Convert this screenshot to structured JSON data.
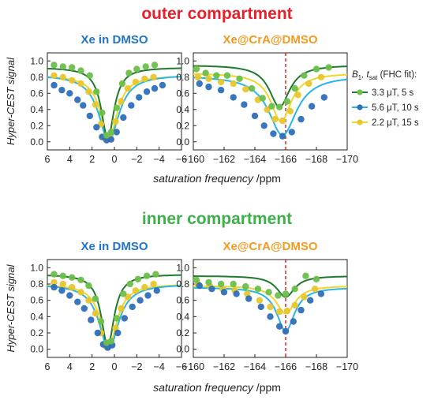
{
  "section_titles": {
    "outer": "outer compartment",
    "inner": "inner compartment"
  },
  "colors": {
    "outer_title": "#e8202a",
    "inner_title": "#3db04a",
    "free_title": "#1f75c4",
    "cage_title": "#f39a1f",
    "green": "#2e8b3a",
    "cyan": "#29b5e8",
    "yellow": "#f0d62a",
    "cursor": "#d91a1a"
  },
  "axis": {
    "ylabel": "Hyper-CEST signal",
    "xlabel": "saturation frequency",
    "xunit": "/ppm"
  },
  "legend": {
    "header_parts": [
      "B",
      "1",
      ", t",
      "sat",
      " (FHC fit):"
    ],
    "entries": [
      "3.3 μT, 5 s",
      "5.6 μT, 10 s",
      "2.2 μT, 15 s"
    ]
  },
  "chart_data": [
    {
      "id": "outer-free",
      "type": "scatter",
      "title": "Xe in DMSO",
      "xlim": [
        6,
        -6
      ],
      "ylim": [
        -0.1,
        1.1
      ],
      "xticks": [
        "6",
        "4",
        "2",
        "0",
        "−2",
        "−4",
        "−6"
      ],
      "yticks": [
        "0.0",
        "0.2",
        "0.4",
        "0.6",
        "0.8",
        "1.0"
      ],
      "series": [
        {
          "name": "3.3 μT, 5 s",
          "center": 0.6,
          "baseline": 0.92,
          "depth": 0.88,
          "width": 1.4,
          "points": [
            [
              5.4,
              0.95
            ],
            [
              4.6,
              0.93
            ],
            [
              3.8,
              0.92
            ],
            [
              3.0,
              0.88
            ],
            [
              2.2,
              0.82
            ],
            [
              1.6,
              0.62
            ],
            [
              1.1,
              0.36
            ],
            [
              0.7,
              0.08
            ],
            [
              0.3,
              0.12
            ],
            [
              -0.2,
              0.42
            ],
            [
              -0.7,
              0.72
            ],
            [
              -1.3,
              0.85
            ],
            [
              -2.0,
              0.9
            ],
            [
              -2.8,
              0.93
            ],
            [
              -3.6,
              0.95
            ]
          ]
        },
        {
          "name": "5.6 μT, 10 s",
          "center": 0.5,
          "baseline": 0.83,
          "depth": 0.82,
          "width": 2.2,
          "points": [
            [
              5.4,
              0.7
            ],
            [
              4.7,
              0.64
            ],
            [
              4.0,
              0.6
            ],
            [
              3.3,
              0.52
            ],
            [
              2.8,
              0.45
            ],
            [
              2.2,
              0.32
            ],
            [
              1.6,
              0.18
            ],
            [
              1.1,
              0.06
            ],
            [
              0.7,
              0.02
            ],
            [
              0.3,
              0.03
            ],
            [
              -0.2,
              0.12
            ],
            [
              -0.8,
              0.3
            ],
            [
              -1.5,
              0.45
            ],
            [
              -2.2,
              0.55
            ],
            [
              -2.9,
              0.62
            ],
            [
              -3.6,
              0.66
            ],
            [
              -4.3,
              0.7
            ]
          ]
        },
        {
          "name": "2.2 μT, 15 s",
          "center": 0.5,
          "baseline": 0.82,
          "depth": 0.78,
          "width": 1.8,
          "points": [
            [
              5.4,
              0.82
            ],
            [
              4.6,
              0.8
            ],
            [
              3.8,
              0.76
            ],
            [
              3.0,
              0.72
            ],
            [
              2.3,
              0.62
            ],
            [
              1.7,
              0.46
            ],
            [
              1.2,
              0.22
            ],
            [
              0.8,
              0.05
            ],
            [
              0.4,
              0.06
            ],
            [
              -0.1,
              0.25
            ],
            [
              -0.6,
              0.5
            ],
            [
              -1.2,
              0.66
            ],
            [
              -1.9,
              0.74
            ],
            [
              -2.7,
              0.78
            ],
            [
              -3.5,
              0.8
            ]
          ]
        }
      ]
    },
    {
      "id": "outer-cage",
      "type": "scatter",
      "title": "Xe@CrA@DMSO",
      "xlim": [
        -160,
        -170
      ],
      "ylim": [
        -0.1,
        1.1
      ],
      "xticks": [
        "−160",
        "−162",
        "−164",
        "−166",
        "−168",
        "−170"
      ],
      "yticks": [
        "0.0",
        "0.2",
        "0.4",
        "0.6",
        "0.8",
        "1.0"
      ],
      "marker_x": -166,
      "series": [
        {
          "name": "3.3 μT, 5 s",
          "center": -165.6,
          "baseline": 0.95,
          "depth": 0.52,
          "width": 1.6,
          "points": [
            [
              -160.2,
              0.9
            ],
            [
              -160.8,
              0.85
            ],
            [
              -161.5,
              0.82
            ],
            [
              -162.2,
              0.82
            ],
            [
              -163.0,
              0.78
            ],
            [
              -163.8,
              0.66
            ],
            [
              -164.5,
              0.54
            ],
            [
              -165.1,
              0.44
            ],
            [
              -165.6,
              0.43
            ],
            [
              -166.1,
              0.5
            ],
            [
              -166.6,
              0.66
            ],
            [
              -167.2,
              0.82
            ],
            [
              -168.0,
              0.9
            ],
            [
              -168.8,
              0.92
            ]
          ]
        },
        {
          "name": "5.6 μT, 10 s",
          "center": -165.8,
          "baseline": 0.82,
          "depth": 0.74,
          "width": 2.2,
          "points": [
            [
              -160.4,
              0.72
            ],
            [
              -161.0,
              0.68
            ],
            [
              -161.8,
              0.64
            ],
            [
              -162.6,
              0.55
            ],
            [
              -163.3,
              0.46
            ],
            [
              -164.0,
              0.32
            ],
            [
              -164.6,
              0.2
            ],
            [
              -165.2,
              0.1
            ],
            [
              -165.8,
              0.07
            ],
            [
              -166.4,
              0.12
            ],
            [
              -167.0,
              0.28
            ],
            [
              -167.7,
              0.44
            ],
            [
              -168.5,
              0.55
            ]
          ]
        },
        {
          "name": "2.2 μT, 15 s",
          "center": -165.7,
          "baseline": 0.85,
          "depth": 0.6,
          "width": 1.6,
          "points": [
            [
              -160.3,
              0.8
            ],
            [
              -161.0,
              0.78
            ],
            [
              -161.8,
              0.74
            ],
            [
              -162.6,
              0.72
            ],
            [
              -163.4,
              0.65
            ],
            [
              -164.2,
              0.52
            ],
            [
              -164.8,
              0.4
            ],
            [
              -165.3,
              0.28
            ],
            [
              -165.8,
              0.26
            ],
            [
              -166.3,
              0.38
            ],
            [
              -166.8,
              0.58
            ],
            [
              -167.5,
              0.72
            ],
            [
              -168.3,
              0.8
            ]
          ]
        }
      ]
    },
    {
      "id": "inner-free",
      "type": "scatter",
      "title": "Xe in DMSO",
      "xlim": [
        6,
        -6
      ],
      "ylim": [
        -0.1,
        1.1
      ],
      "xticks": [
        "6",
        "4",
        "2",
        "0",
        "−2",
        "−4",
        "−6"
      ],
      "yticks": [
        "0.0",
        "0.2",
        "0.4",
        "0.6",
        "0.8",
        "1.0"
      ],
      "series": [
        {
          "name": "3.3 μT, 5 s",
          "center": 0.6,
          "baseline": 0.92,
          "depth": 0.88,
          "width": 1.4,
          "points": [
            [
              5.4,
              0.92
            ],
            [
              4.6,
              0.9
            ],
            [
              3.8,
              0.88
            ],
            [
              3.0,
              0.85
            ],
            [
              2.3,
              0.78
            ],
            [
              1.7,
              0.62
            ],
            [
              1.2,
              0.34
            ],
            [
              0.7,
              0.08
            ],
            [
              0.3,
              0.1
            ],
            [
              -0.2,
              0.38
            ],
            [
              -0.8,
              0.68
            ],
            [
              -1.4,
              0.8
            ],
            [
              -2.1,
              0.86
            ],
            [
              -2.9,
              0.9
            ],
            [
              -3.7,
              0.92
            ]
          ]
        },
        {
          "name": "5.6 μT, 10 s",
          "center": 0.5,
          "baseline": 0.8,
          "depth": 0.8,
          "width": 2.1,
          "points": [
            [
              5.4,
              0.76
            ],
            [
              4.7,
              0.72
            ],
            [
              4.0,
              0.66
            ],
            [
              3.3,
              0.58
            ],
            [
              2.7,
              0.5
            ],
            [
              2.1,
              0.36
            ],
            [
              1.5,
              0.2
            ],
            [
              1.0,
              0.06
            ],
            [
              0.6,
              0.02
            ],
            [
              0.2,
              0.05
            ],
            [
              -0.3,
              0.2
            ],
            [
              -0.9,
              0.38
            ],
            [
              -1.6,
              0.52
            ],
            [
              -2.3,
              0.6
            ],
            [
              -3.0,
              0.66
            ],
            [
              -3.8,
              0.72
            ]
          ]
        },
        {
          "name": "2.2 μT, 15 s",
          "center": 0.5,
          "baseline": 0.8,
          "depth": 0.76,
          "width": 1.8,
          "points": [
            [
              5.4,
              0.82
            ],
            [
              4.6,
              0.8
            ],
            [
              3.8,
              0.76
            ],
            [
              3.0,
              0.7
            ],
            [
              2.3,
              0.6
            ],
            [
              1.7,
              0.44
            ],
            [
              1.2,
              0.2
            ],
            [
              0.8,
              0.04
            ],
            [
              0.4,
              0.06
            ],
            [
              -0.1,
              0.26
            ],
            [
              -0.6,
              0.5
            ],
            [
              -1.2,
              0.64
            ],
            [
              -1.9,
              0.72
            ],
            [
              -2.7,
              0.76
            ],
            [
              -3.5,
              0.8
            ]
          ]
        }
      ]
    },
    {
      "id": "inner-cage",
      "type": "scatter",
      "title": "Xe@CrA@DMSO",
      "xlim": [
        -160,
        -170
      ],
      "ylim": [
        -0.1,
        1.1
      ],
      "xticks": [
        "−160",
        "−162",
        "−164",
        "−166",
        "−168",
        "−170"
      ],
      "yticks": [
        "0.0",
        "0.2",
        "0.4",
        "0.6",
        "0.8",
        "1.0"
      ],
      "marker_x": -166,
      "series": [
        {
          "name": "3.3 μT, 5 s",
          "center": -166.0,
          "baseline": 0.9,
          "depth": 0.26,
          "width": 1.4,
          "points": [
            [
              -160.2,
              0.85
            ],
            [
              -161.0,
              0.82
            ],
            [
              -161.8,
              0.8
            ],
            [
              -162.6,
              0.8
            ],
            [
              -163.4,
              0.77
            ],
            [
              -164.2,
              0.74
            ],
            [
              -164.9,
              0.7
            ],
            [
              -165.5,
              0.66
            ],
            [
              -166.0,
              0.68
            ],
            [
              -166.6,
              0.74
            ],
            [
              -167.3,
              0.9
            ],
            [
              -168.0,
              0.86
            ]
          ]
        },
        {
          "name": "5.6 μT, 10 s",
          "center": -166.0,
          "baseline": 0.76,
          "depth": 0.54,
          "width": 1.4,
          "points": [
            [
              -160.4,
              0.78
            ],
            [
              -161.2,
              0.74
            ],
            [
              -162.0,
              0.7
            ],
            [
              -162.8,
              0.68
            ],
            [
              -163.6,
              0.62
            ],
            [
              -164.4,
              0.52
            ],
            [
              -165.0,
              0.4
            ],
            [
              -165.6,
              0.28
            ],
            [
              -166.0,
              0.22
            ],
            [
              -166.5,
              0.34
            ],
            [
              -167.0,
              0.48
            ],
            [
              -167.6,
              0.6
            ],
            [
              -168.3,
              0.68
            ]
          ]
        },
        {
          "name": "2.2 μT, 15 s",
          "center": -166.0,
          "baseline": 0.78,
          "depth": 0.34,
          "width": 1.5,
          "points": [
            [
              -160.3,
              0.8
            ],
            [
              -161.1,
              0.77
            ],
            [
              -161.9,
              0.74
            ],
            [
              -162.7,
              0.72
            ],
            [
              -163.5,
              0.68
            ],
            [
              -164.3,
              0.6
            ],
            [
              -165.0,
              0.52
            ],
            [
              -165.6,
              0.46
            ],
            [
              -166.1,
              0.47
            ],
            [
              -166.6,
              0.54
            ],
            [
              -167.2,
              0.64
            ],
            [
              -167.9,
              0.74
            ]
          ]
        }
      ]
    }
  ]
}
